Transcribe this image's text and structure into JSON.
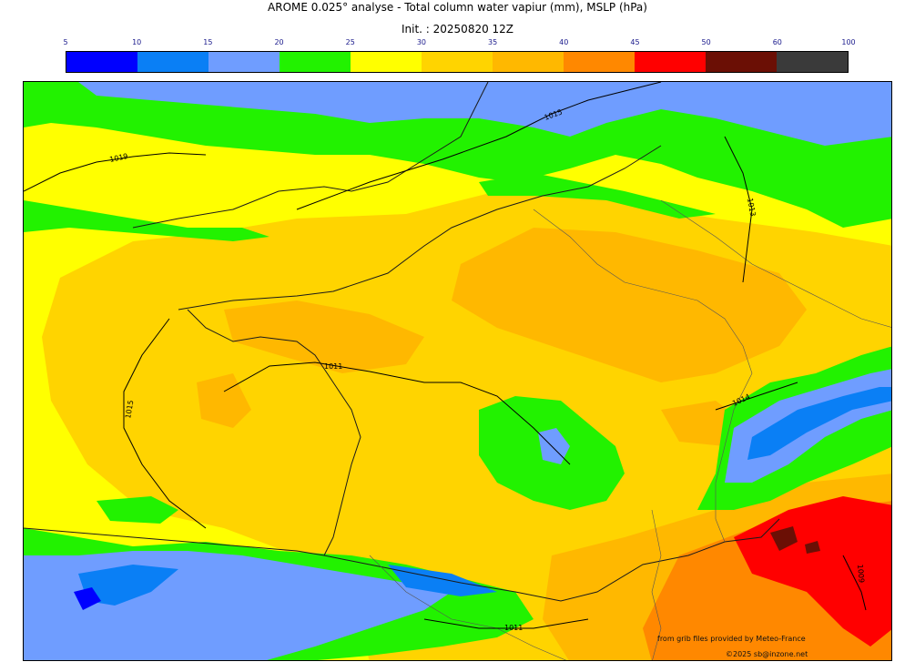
{
  "title": "AROME 0.025° analyse - Total column water vapiur (mm), MSLP (hPa)",
  "init": "Init. : 20250820 12Z",
  "colorbar": {
    "ticks": [
      "5",
      "10",
      "15",
      "20",
      "25",
      "30",
      "35",
      "40",
      "45",
      "50",
      "60",
      "100"
    ],
    "colors": [
      "#0000ff",
      "#0a7ff5",
      "#6f9dff",
      "#22f200",
      "#ffff00",
      "#ffd400",
      "#ffb800",
      "#ff8800",
      "#ff0000",
      "#6b0f05",
      "#3a3a3a"
    ]
  },
  "isobars": {
    "labels": [
      "1015",
      "1019",
      "1011",
      "1015",
      "1013",
      "1014",
      "1011",
      "1009"
    ]
  },
  "credits": {
    "source": "from grib files provided by Meteo-France",
    "copyright": "©2025 sb@inzone.net"
  }
}
